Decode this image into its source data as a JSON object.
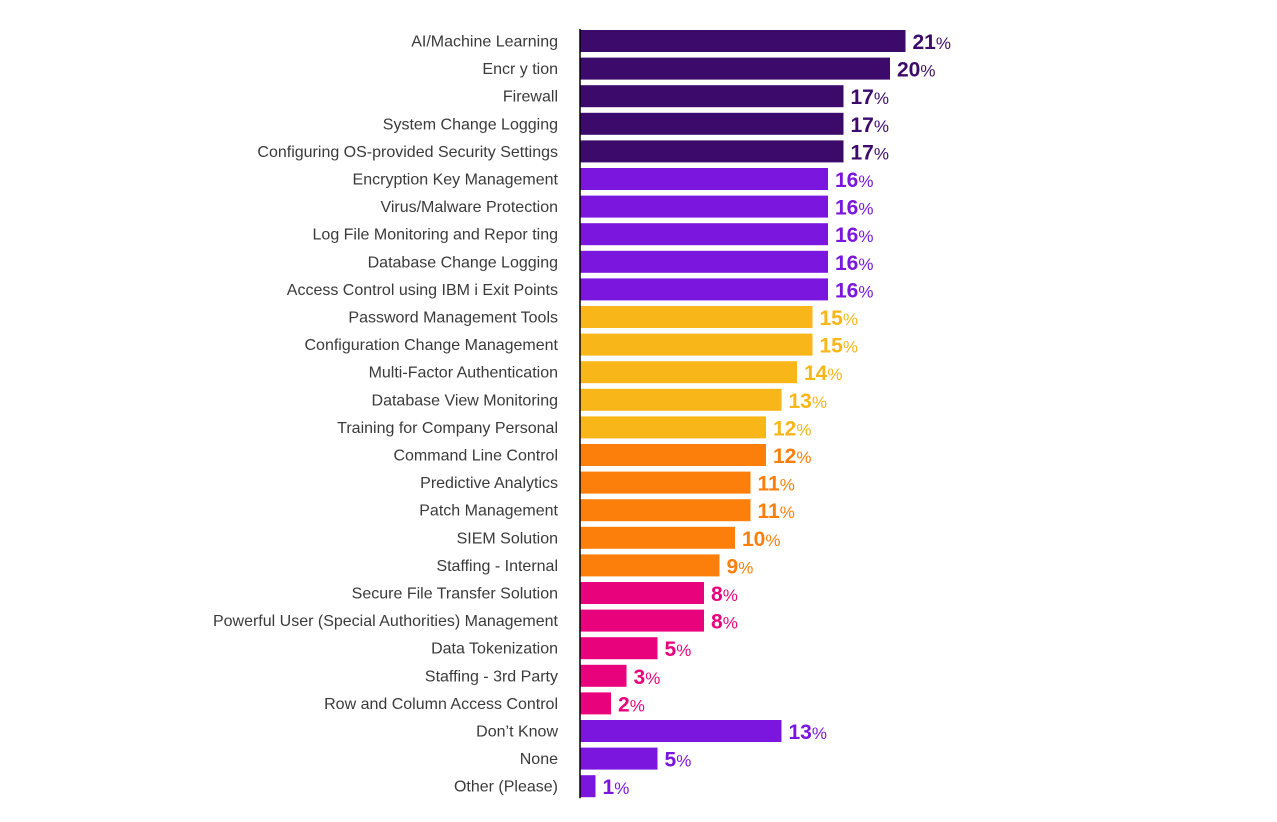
{
  "colors": {
    "dark_purple": "#3b0a6b",
    "purple": "#7b16de",
    "yellow": "#f8b618",
    "orange": "#fb7f0a",
    "pink": "#e8037c",
    "axis": "#000000"
  },
  "chart_data": {
    "type": "bar",
    "orientation": "horizontal",
    "value_suffix": "%",
    "xlim": [
      0,
      25
    ],
    "categories": [
      "AI/Machine Learning",
      "Encr y tion",
      "Firewall",
      "System Change Logging",
      "Configuring OS-provided Security Settings",
      "Encryption Key Management",
      "Virus/Malware Protection",
      "Log File Monitoring and Repor ting",
      "Database Change Logging",
      "Access Control using IBM i Exit Points",
      "Password Management Tools",
      "Configuration Change Management",
      "Multi-Factor Authentication",
      "Database View Monitoring",
      "Training for Company Personal",
      "Command Line Control",
      "Predictive Analytics",
      "Patch Management",
      "SIEM Solution",
      "Staffing - Internal",
      "Secure File Transfer Solution",
      "Powerful User (Special Authorities) Management",
      "Data Tokenization",
      "Staffing - 3rd Party",
      "Row and Column Access Control",
      "Don’t Know",
      "None",
      "Other (Please)"
    ],
    "values": [
      21,
      20,
      17,
      17,
      17,
      16,
      16,
      16,
      16,
      16,
      15,
      15,
      14,
      13,
      12,
      12,
      11,
      11,
      10,
      9,
      8,
      8,
      5,
      3,
      2,
      13,
      5,
      1
    ],
    "bar_colors": [
      "#3b0a6b",
      "#3b0a6b",
      "#3b0a6b",
      "#3b0a6b",
      "#3b0a6b",
      "#7b16de",
      "#7b16de",
      "#7b16de",
      "#7b16de",
      "#7b16de",
      "#f8b618",
      "#f8b618",
      "#f8b618",
      "#f8b618",
      "#f8b618",
      "#fb7f0a",
      "#fb7f0a",
      "#fb7f0a",
      "#fb7f0a",
      "#fb7f0a",
      "#e8037c",
      "#e8037c",
      "#e8037c",
      "#e8037c",
      "#e8037c",
      "#7b16de",
      "#7b16de",
      "#7b16de"
    ],
    "grid": false,
    "legend": "none"
  }
}
